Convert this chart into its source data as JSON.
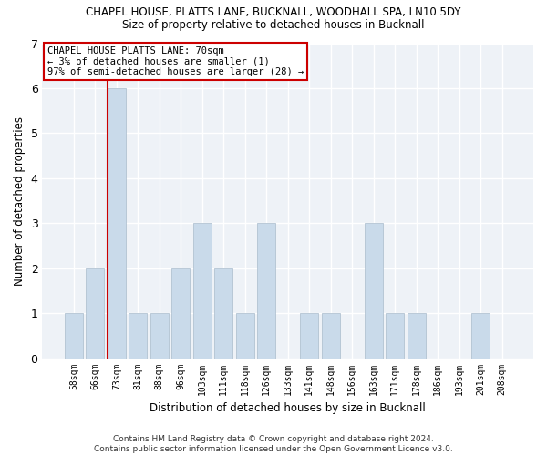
{
  "title_line1": "CHAPEL HOUSE, PLATTS LANE, BUCKNALL, WOODHALL SPA, LN10 5DY",
  "title_line2": "Size of property relative to detached houses in Bucknall",
  "xlabel": "Distribution of detached houses by size in Bucknall",
  "ylabel": "Number of detached properties",
  "footnote": "Contains HM Land Registry data © Crown copyright and database right 2024.\nContains public sector information licensed under the Open Government Licence v3.0.",
  "annotation_line1": "CHAPEL HOUSE PLATTS LANE: 70sqm",
  "annotation_line2": "← 3% of detached houses are smaller (1)",
  "annotation_line3": "97% of semi-detached houses are larger (28) →",
  "bar_color": "#c9daea",
  "bar_edge_color": "#aabccc",
  "redline_color": "#cc0000",
  "annotation_box_edge": "#cc0000",
  "background_color": "#ffffff",
  "axes_background": "#eef2f7",
  "grid_color": "#ffffff",
  "categories": [
    "58sqm",
    "66sqm",
    "73sqm",
    "81sqm",
    "88sqm",
    "96sqm",
    "103sqm",
    "111sqm",
    "118sqm",
    "126sqm",
    "133sqm",
    "141sqm",
    "148sqm",
    "156sqm",
    "163sqm",
    "171sqm",
    "178sqm",
    "186sqm",
    "193sqm",
    "201sqm",
    "208sqm"
  ],
  "values": [
    1,
    2,
    6,
    1,
    1,
    2,
    3,
    2,
    1,
    3,
    0,
    1,
    1,
    0,
    3,
    1,
    1,
    0,
    0,
    1,
    0
  ],
  "ylim": [
    0,
    7
  ],
  "yticks": [
    0,
    1,
    2,
    3,
    4,
    5,
    6,
    7
  ],
  "redline_index": 2,
  "figsize": [
    6.0,
    5.0
  ],
  "dpi": 100
}
